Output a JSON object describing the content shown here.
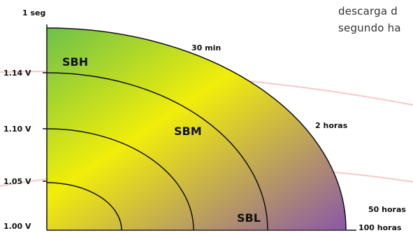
{
  "paragraph": {
    "line1": "descarga d",
    "line2": "segundo ha"
  },
  "colors": {
    "gradient_start": "#6cc14a",
    "gradient_mid": "#f1ee0a",
    "gradient_end": "#8a57a8",
    "guide_lines": "#f6c9c9",
    "curves": "#111111"
  },
  "chart_data": {
    "type": "area",
    "title": "",
    "xlabel": "",
    "ylabel": "",
    "y_ticks": [
      "1.00 V",
      "1.05 V",
      "1.10 V",
      "1.14 V",
      "1 seg"
    ],
    "y_values": [
      1.0,
      1.05,
      1.1,
      1.14
    ],
    "time_labels": [
      "30 min",
      "2 horas",
      "50 horas",
      "100 horas"
    ],
    "regions": [
      "SBH",
      "SBM",
      "SBL"
    ],
    "grid": false,
    "legend": "none"
  }
}
